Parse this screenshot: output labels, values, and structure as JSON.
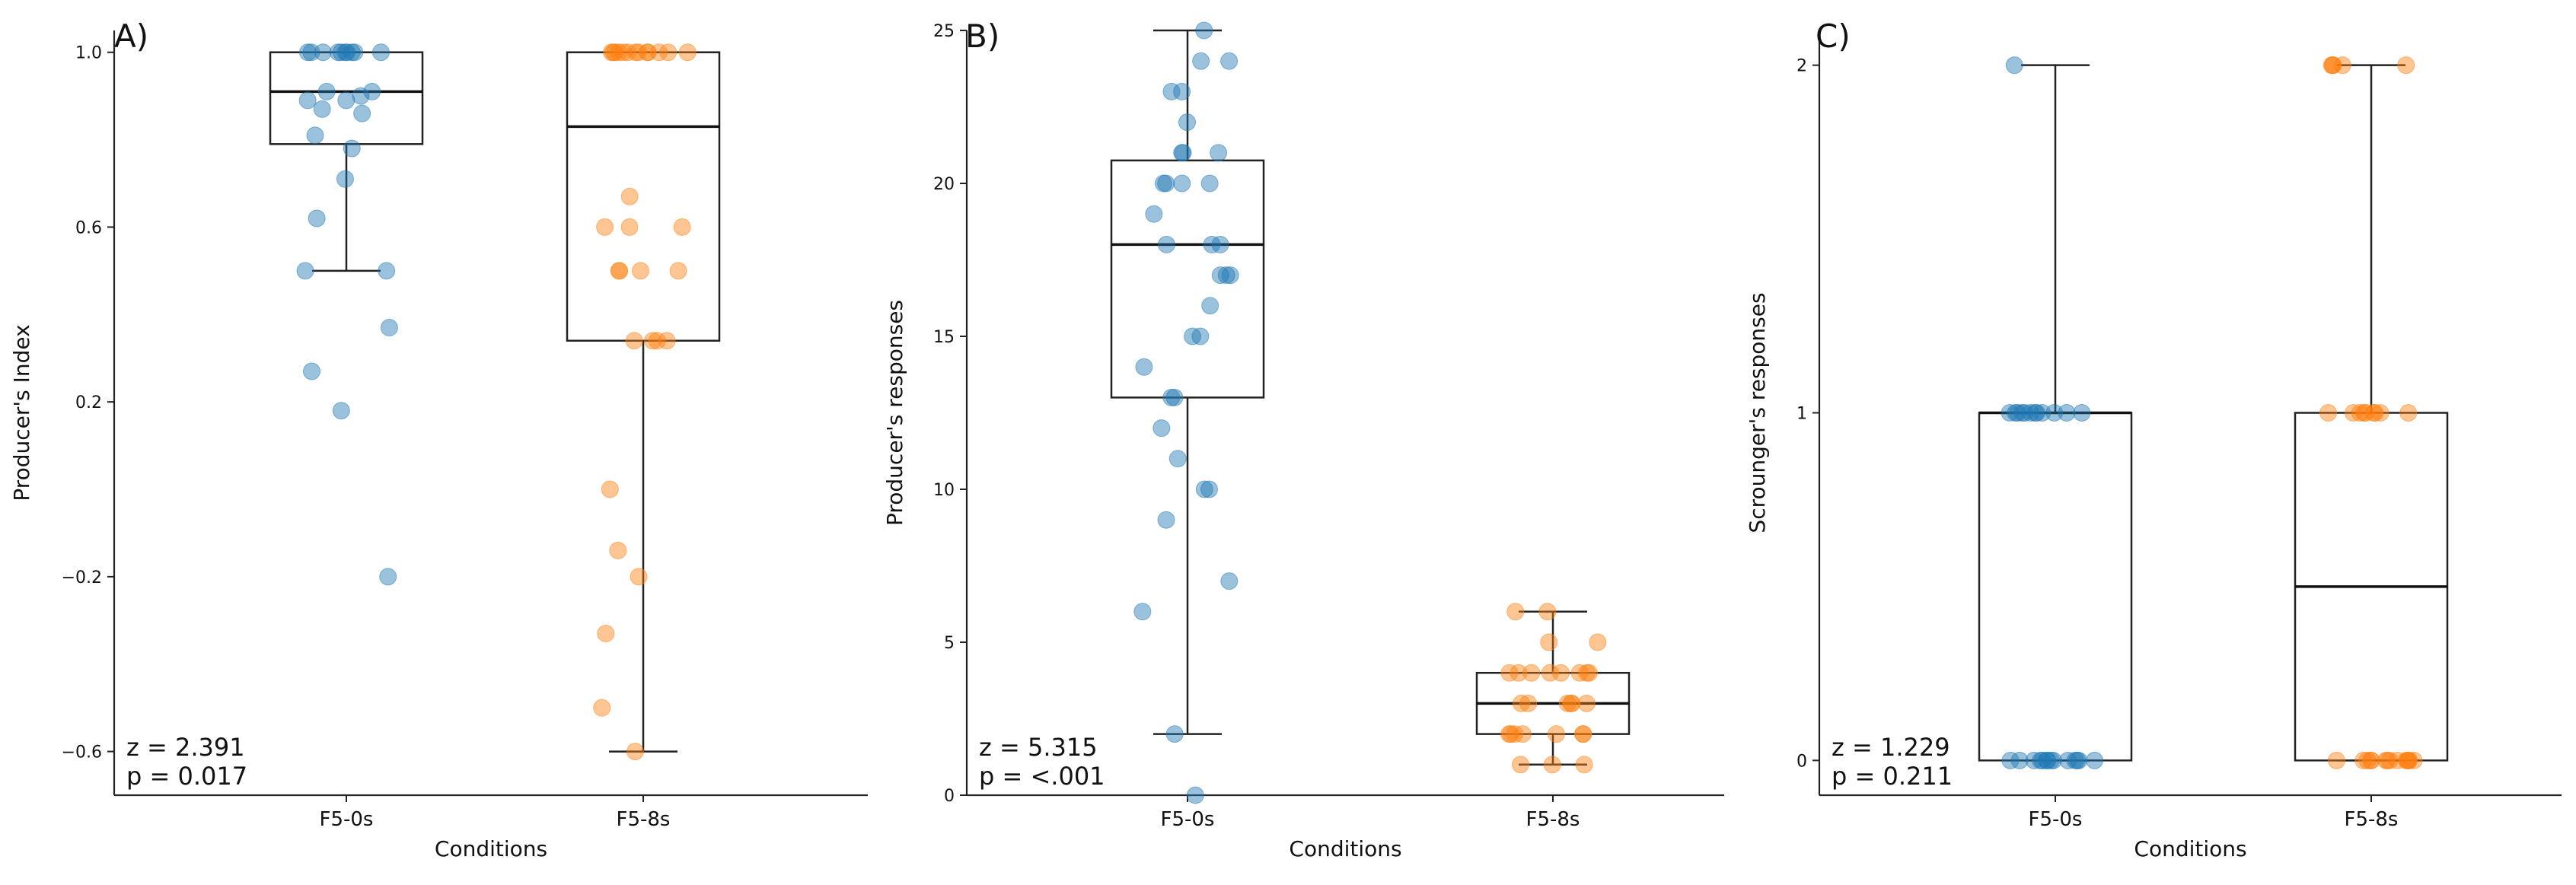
{
  "colors": {
    "series_0": "#1f77b4",
    "series_1": "#ff7f0e"
  },
  "chart_data": [
    {
      "type": "box",
      "panel_label": "A)",
      "xlabel": "Conditions",
      "ylabel": "Producer's Index",
      "ylim": [
        -0.7,
        1.05
      ],
      "yticks": [
        -0.6,
        -0.2,
        0.2,
        0.6,
        1.0
      ],
      "ytick_labels": [
        "−0.6",
        "−0.2",
        "0.2",
        "0.6",
        "1.0"
      ],
      "categories": [
        "F5-0s",
        "F5-8s"
      ],
      "stats": [
        "z = 2.391",
        "p = 0.017"
      ],
      "boxes": [
        {
          "q1": 0.79,
          "median": 0.91,
          "q3": 1.0,
          "whisker_low": 0.5,
          "whisker_high": 1.0
        },
        {
          "q1": 0.34,
          "median": 0.83,
          "q3": 1.0,
          "whisker_low": -0.6,
          "whisker_high": 1.0
        }
      ],
      "points": [
        [
          1.0,
          1.0,
          1.0,
          1.0,
          1.0,
          1.0,
          1.0,
          1.0,
          1.0,
          1.0,
          0.91,
          0.91,
          0.9,
          0.89,
          0.89,
          0.87,
          0.86,
          0.81,
          0.78,
          0.71,
          0.62,
          0.5,
          0.5,
          0.37,
          0.27,
          0.18,
          -0.2
        ],
        [
          1.0,
          1.0,
          1.0,
          1.0,
          1.0,
          1.0,
          1.0,
          1.0,
          1.0,
          1.0,
          1.0,
          1.0,
          1.0,
          0.67,
          0.6,
          0.6,
          0.6,
          0.5,
          0.5,
          0.5,
          0.5,
          0.34,
          0.34,
          0.34,
          0.34,
          0.0,
          -0.14,
          -0.2,
          -0.33,
          -0.5,
          -0.6
        ]
      ]
    },
    {
      "type": "box",
      "panel_label": "B)",
      "xlabel": "Conditions",
      "ylabel": "Producer's responses",
      "ylim": [
        0,
        25
      ],
      "yticks": [
        0,
        5,
        10,
        15,
        20,
        25
      ],
      "ytick_labels": [
        "0",
        "5",
        "10",
        "15",
        "20",
        "25"
      ],
      "categories": [
        "F5-0s",
        "F5-8s"
      ],
      "stats": [
        "z = 5.315",
        "p = <.001"
      ],
      "boxes": [
        {
          "q1": 13,
          "median": 18,
          "q3": 20.75,
          "whisker_low": 2,
          "whisker_high": 25
        },
        {
          "q1": 2,
          "median": 3,
          "q3": 4,
          "whisker_low": 1,
          "whisker_high": 6
        }
      ],
      "points": [
        [
          25,
          24,
          24,
          23,
          23,
          22,
          21,
          21,
          21,
          20,
          20,
          20,
          20,
          19,
          18,
          18,
          18,
          17,
          17,
          17,
          16,
          15,
          15,
          14,
          13,
          13,
          12,
          11,
          10,
          10,
          9,
          7,
          6,
          2,
          0
        ],
        [
          6,
          6,
          5,
          5,
          4,
          4,
          4,
          4,
          4,
          4,
          4,
          4,
          3,
          3,
          3,
          3,
          3,
          3,
          2,
          2,
          2,
          2,
          2,
          2,
          2,
          1,
          1,
          1
        ]
      ]
    },
    {
      "type": "box",
      "panel_label": "C)",
      "xlabel": "Conditions",
      "ylabel": "Scrounger's responses",
      "ylim": [
        -0.1,
        2.1
      ],
      "yticks": [
        0,
        1,
        2
      ],
      "ytick_labels": [
        "0",
        "1",
        "2"
      ],
      "categories": [
        "F5-0s",
        "F5-8s"
      ],
      "stats": [
        "z = 1.229",
        "p = 0.211"
      ],
      "boxes": [
        {
          "q1": 0,
          "median": 1,
          "q3": 1,
          "whisker_low": 0,
          "whisker_high": 2
        },
        {
          "q1": 0,
          "median": 0.5,
          "q3": 1,
          "whisker_low": 0,
          "whisker_high": 2
        }
      ],
      "points": [
        [
          2,
          1,
          1,
          1,
          1,
          1,
          1,
          1,
          1,
          1,
          1,
          1,
          1,
          0,
          0,
          0,
          0,
          0,
          0,
          0,
          0,
          0,
          0,
          0,
          0,
          0,
          0
        ],
        [
          2,
          2,
          2,
          2,
          2,
          1,
          1,
          1,
          1,
          1,
          1,
          1,
          1,
          1,
          0,
          0,
          0,
          0,
          0,
          0,
          0,
          0,
          0,
          0,
          0,
          0,
          0,
          0
        ]
      ]
    }
  ]
}
